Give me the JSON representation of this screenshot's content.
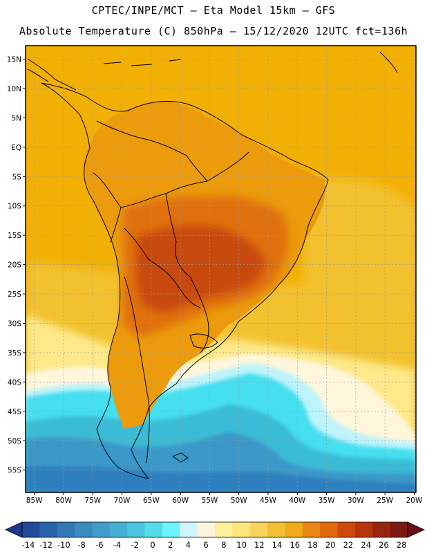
{
  "header": {
    "line1": "CPTEC/INPE/MCT –  Eta Model 15km – GFS",
    "line2": "Absolute Temperature (C) 850hPa – 15/12/2020 12UTC fct=136h"
  },
  "map": {
    "lat_labels": [
      "15N",
      "10N",
      "5N",
      "EQ",
      "5S",
      "10S",
      "15S",
      "20S",
      "25S",
      "30S",
      "35S",
      "40S",
      "45S",
      "50S",
      "55S"
    ],
    "lon_labels": [
      "85W",
      "80W",
      "75W",
      "70W",
      "65W",
      "60W",
      "55W",
      "50W",
      "45W",
      "40W",
      "35W",
      "30W",
      "25W",
      "20W"
    ],
    "colors": {
      "ocean_tropical": "#f2b005",
      "land_warm": "#eb9b0c",
      "land_hot": "#e0700d",
      "land_hottest": "#c84a0a",
      "subtropical": "#f2c12e",
      "pale_yellow": "#fde98a",
      "cream": "#fff6dc",
      "light_cyan": "#bdf3fb",
      "cyan": "#44dff0",
      "teal": "#3bbcd6",
      "blue": "#3a98c8",
      "deep_blue": "#2f7fbd"
    }
  },
  "colorbar": {
    "labels": [
      "-14",
      "-12",
      "-10",
      "-8",
      "-6",
      "-4",
      "-2",
      "0",
      "2",
      "4",
      "6",
      "8",
      "10",
      "12",
      "14",
      "16",
      "18",
      "20",
      "22",
      "24",
      "26",
      "28"
    ],
    "colors": [
      "#214a9a",
      "#2a63a9",
      "#3477b5",
      "#3b8ac0",
      "#419ccb",
      "#46afd4",
      "#4bc4de",
      "#54dcea",
      "#6bf4fb",
      "#d1f4fb",
      "#fdf6dc",
      "#fdf09b",
      "#fde67a",
      "#f8d55a",
      "#f2c034",
      "#f0ab1a",
      "#e98714",
      "#e06a0e",
      "#cf480b",
      "#b5350c",
      "#982510",
      "#7a1a13"
    ],
    "left_arrow_color": "#1d3a8c",
    "right_arrow_color": "#6b0f12"
  }
}
